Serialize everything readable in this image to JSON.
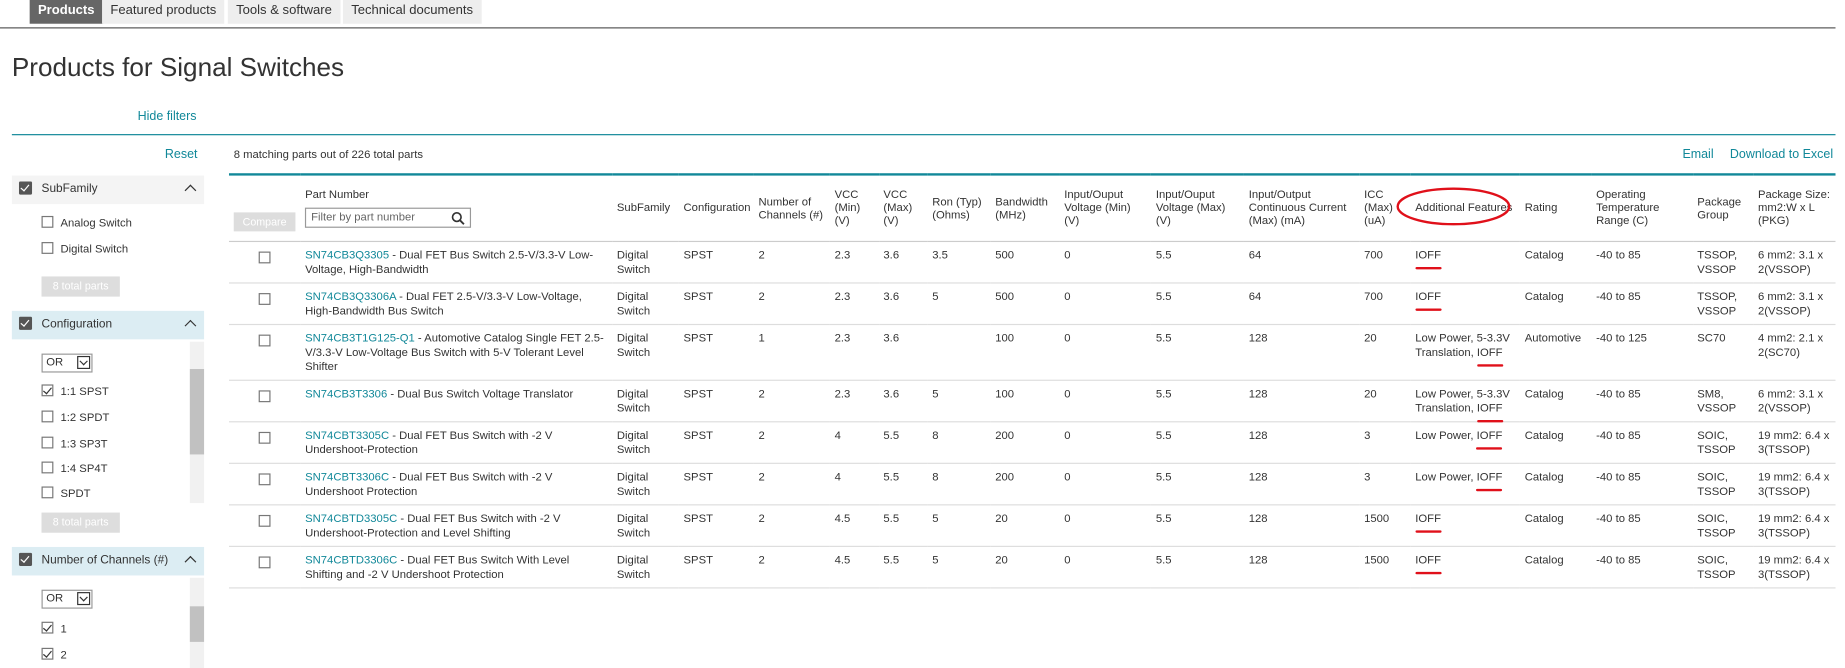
{
  "tabs": [
    "Products",
    "Featured products",
    "Tools & software",
    "Technical documents"
  ],
  "title": "Products for Signal Switches",
  "hide_filters": "Hide filters",
  "reset": "Reset",
  "filters": [
    {
      "title": "SubFamily",
      "options": [
        {
          "label": "Analog Switch",
          "checked": false
        },
        {
          "label": "Digital Switch",
          "checked": false
        }
      ],
      "total": "8 total parts"
    },
    {
      "title": "Configuration",
      "operator": "OR",
      "options": [
        {
          "label": "1:1 SPST",
          "checked": true
        },
        {
          "label": "1:2 SPDT",
          "checked": false
        },
        {
          "label": "1:3 SP3T",
          "checked": false
        },
        {
          "label": "1:4 SP4T",
          "checked": false
        },
        {
          "label": "SPDT",
          "checked": false
        }
      ],
      "total": "8 total parts"
    },
    {
      "title": "Number of Channels (#)",
      "operator": "OR",
      "options": [
        {
          "label": "1",
          "checked": true
        },
        {
          "label": "2",
          "checked": true
        }
      ]
    }
  ],
  "summary": "8 matching parts out of 226 total parts",
  "email": "Email",
  "download": "Download to Excel",
  "compare": "Compare",
  "filter_placeholder": "Filter by part number",
  "part_number_header": "Part Number",
  "columns": [
    "SubFamily",
    "Configuration",
    "Number of Channels (#)",
    "VCC (Min) (V)",
    "VCC (Max) (V)",
    "Ron (Typ) (Ohms)",
    "Bandwidth (MHz)",
    "Input/Ouput Voltage (Min) (V)",
    "Input/Ouput Voltage (Max) (V)",
    "Input/Output Continuous Current (Max) (mA)",
    "ICC (Max) (uA)",
    "Additional Features",
    "Rating",
    "Operating Temperature Range (C)",
    "Package Group",
    "Package Size: mm2:W x L (PKG)"
  ],
  "rows": [
    {
      "part": "SN74CB3Q3305",
      "description": "- Dual FET Bus Switch 2.5-V/3.3-V Low-Voltage, High-Bandwidth",
      "cells": [
        "Digital Switch",
        "SPST",
        "2",
        "2.3",
        "3.6",
        "3.5",
        "500",
        "0",
        "5.5",
        "64",
        "700",
        "IOFF",
        "Catalog",
        "-40 to 85",
        "TSSOP, VSSOP",
        "6 mm2: 3.1 x 2(VSSOP)"
      ]
    },
    {
      "part": "SN74CB3Q3306A",
      "description": "- Dual FET 2.5-V/3.3-V Low-Voltage, High-Bandwidth Bus Switch",
      "cells": [
        "Digital Switch",
        "SPST",
        "2",
        "2.3",
        "3.6",
        "5",
        "500",
        "0",
        "5.5",
        "64",
        "700",
        "IOFF",
        "Catalog",
        "-40 to 85",
        "TSSOP, VSSOP",
        "6 mm2: 3.1 x 2(VSSOP)"
      ]
    },
    {
      "part": "SN74CB3T1G125-Q1",
      "description": "- Automotive Catalog Single FET 2.5-V/3.3-V Low-Voltage Bus Switch with 5-V Tolerant Level Shifter",
      "cells": [
        "Digital Switch",
        "SPST",
        "1",
        "2.3",
        "3.6",
        null,
        "100",
        "0",
        "5.5",
        "128",
        "20",
        "Low Power, 5-3.3V Translation, IOFF",
        "Automotive",
        "-40 to 125",
        "SC70",
        "4 mm2: 2.1 x 2(SC70)"
      ]
    },
    {
      "part": "SN74CB3T3306",
      "description": "- Dual Bus Switch Voltage Translator",
      "cells": [
        "Digital Switch",
        "SPST",
        "2",
        "2.3",
        "3.6",
        "5",
        "100",
        "0",
        "5.5",
        "128",
        "20",
        "Low Power, 5-3.3V Translation, IOFF",
        "Catalog",
        "-40 to 85",
        "SM8, VSSOP",
        "6 mm2: 3.1 x 2(VSSOP)"
      ]
    },
    {
      "part": "SN74CBT3305C",
      "description": "- Dual FET Bus Switch with -2 V Undershoot-Protection",
      "cells": [
        "Digital Switch",
        "SPST",
        "2",
        "4",
        "5.5",
        "8",
        "200",
        "0",
        "5.5",
        "128",
        "3",
        "Low Power, IOFF",
        "Catalog",
        "-40 to 85",
        "SOIC, TSSOP",
        "19 mm2: 6.4 x 3(TSSOP)"
      ]
    },
    {
      "part": "SN74CBT3306C",
      "description": "- Dual FET Bus Switch with -2 V Undershoot Protection",
      "cells": [
        "Digital Switch",
        "SPST",
        "2",
        "4",
        "5.5",
        "8",
        "200",
        "0",
        "5.5",
        "128",
        "3",
        "Low Power, IOFF",
        "Catalog",
        "-40 to 85",
        "SOIC, TSSOP",
        "19 mm2: 6.4 x 3(TSSOP)"
      ]
    },
    {
      "part": "SN74CBTD3305C",
      "description": "- Dual FET Bus Switch with -2 V Undershoot-Protection and Level Shifting",
      "cells": [
        "Digital Switch",
        "SPST",
        "2",
        "4.5",
        "5.5",
        "5",
        "20",
        "0",
        "5.5",
        "128",
        "1500",
        "IOFF",
        "Catalog",
        "-40 to 85",
        "SOIC, TSSOP",
        "19 mm2: 6.4 x 3(TSSOP)"
      ]
    },
    {
      "part": "SN74CBTD3306C",
      "description": "- Dual FET Bus Switch With Level Shifting and -2 V Undershoot Protection",
      "cells": [
        "Digital Switch",
        "SPST",
        "2",
        "4.5",
        "5.5",
        "5",
        "20",
        "0",
        "5.5",
        "128",
        "1500",
        "IOFF",
        "Catalog",
        "-40 to 85",
        "SOIC, TSSOP",
        "19 mm2: 6.4 x 3(TSSOP)"
      ]
    }
  ]
}
